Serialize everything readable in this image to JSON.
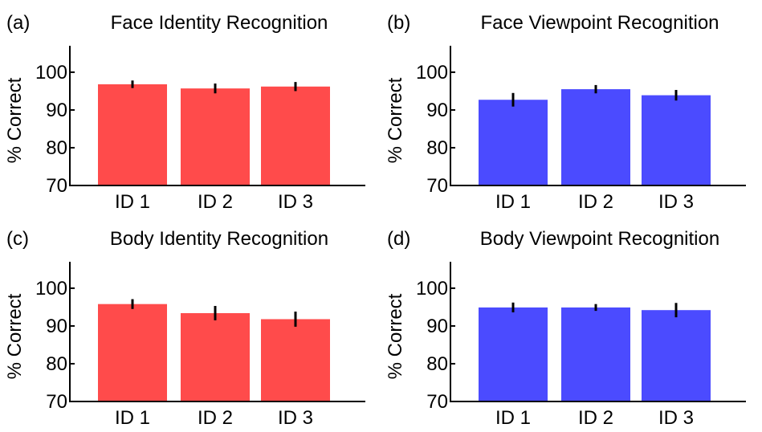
{
  "chart_data": [
    {
      "type": "bar",
      "panel_label": "(a)",
      "title": "Face Identity Recognition",
      "ylabel": "% Correct",
      "xlabel": "",
      "categories": [
        "ID 1",
        "ID 2",
        "ID 3"
      ],
      "values": [
        96.8,
        95.7,
        96.2
      ],
      "errors": [
        1.0,
        1.3,
        1.2
      ],
      "ylim": [
        70,
        107
      ],
      "yticks": [
        "70",
        "80",
        "90",
        "100"
      ],
      "grid": false,
      "color": "#ff4b4b"
    },
    {
      "type": "bar",
      "panel_label": "(b)",
      "title": "Face Viewpoint Recognition",
      "ylabel": "% Correct",
      "xlabel": "",
      "categories": [
        "ID 1",
        "ID 2",
        "ID 3"
      ],
      "values": [
        92.7,
        95.5,
        93.9
      ],
      "errors": [
        1.8,
        1.1,
        1.4
      ],
      "ylim": [
        70,
        107
      ],
      "yticks": [
        "70",
        "80",
        "90",
        "100"
      ],
      "grid": false,
      "color": "#4b4bff"
    },
    {
      "type": "bar",
      "panel_label": "(c)",
      "title": "Body Identity Recognition",
      "ylabel": "% Correct",
      "xlabel": "",
      "categories": [
        "ID 1",
        "ID 2",
        "ID 3"
      ],
      "values": [
        95.8,
        93.4,
        91.8
      ],
      "errors": [
        1.3,
        1.9,
        2.0
      ],
      "ylim": [
        70,
        107
      ],
      "yticks": [
        "70",
        "80",
        "90",
        "100"
      ],
      "grid": false,
      "color": "#ff4b4b"
    },
    {
      "type": "bar",
      "panel_label": "(d)",
      "title": "Body Viewpoint Recognition",
      "ylabel": "% Correct",
      "xlabel": "",
      "categories": [
        "ID 1",
        "ID 2",
        "ID 3"
      ],
      "values": [
        94.9,
        94.9,
        94.2
      ],
      "errors": [
        1.3,
        0.9,
        1.9
      ],
      "ylim": [
        70,
        107
      ],
      "yticks": [
        "70",
        "80",
        "90",
        "100"
      ],
      "grid": false,
      "color": "#4b4bff"
    }
  ]
}
